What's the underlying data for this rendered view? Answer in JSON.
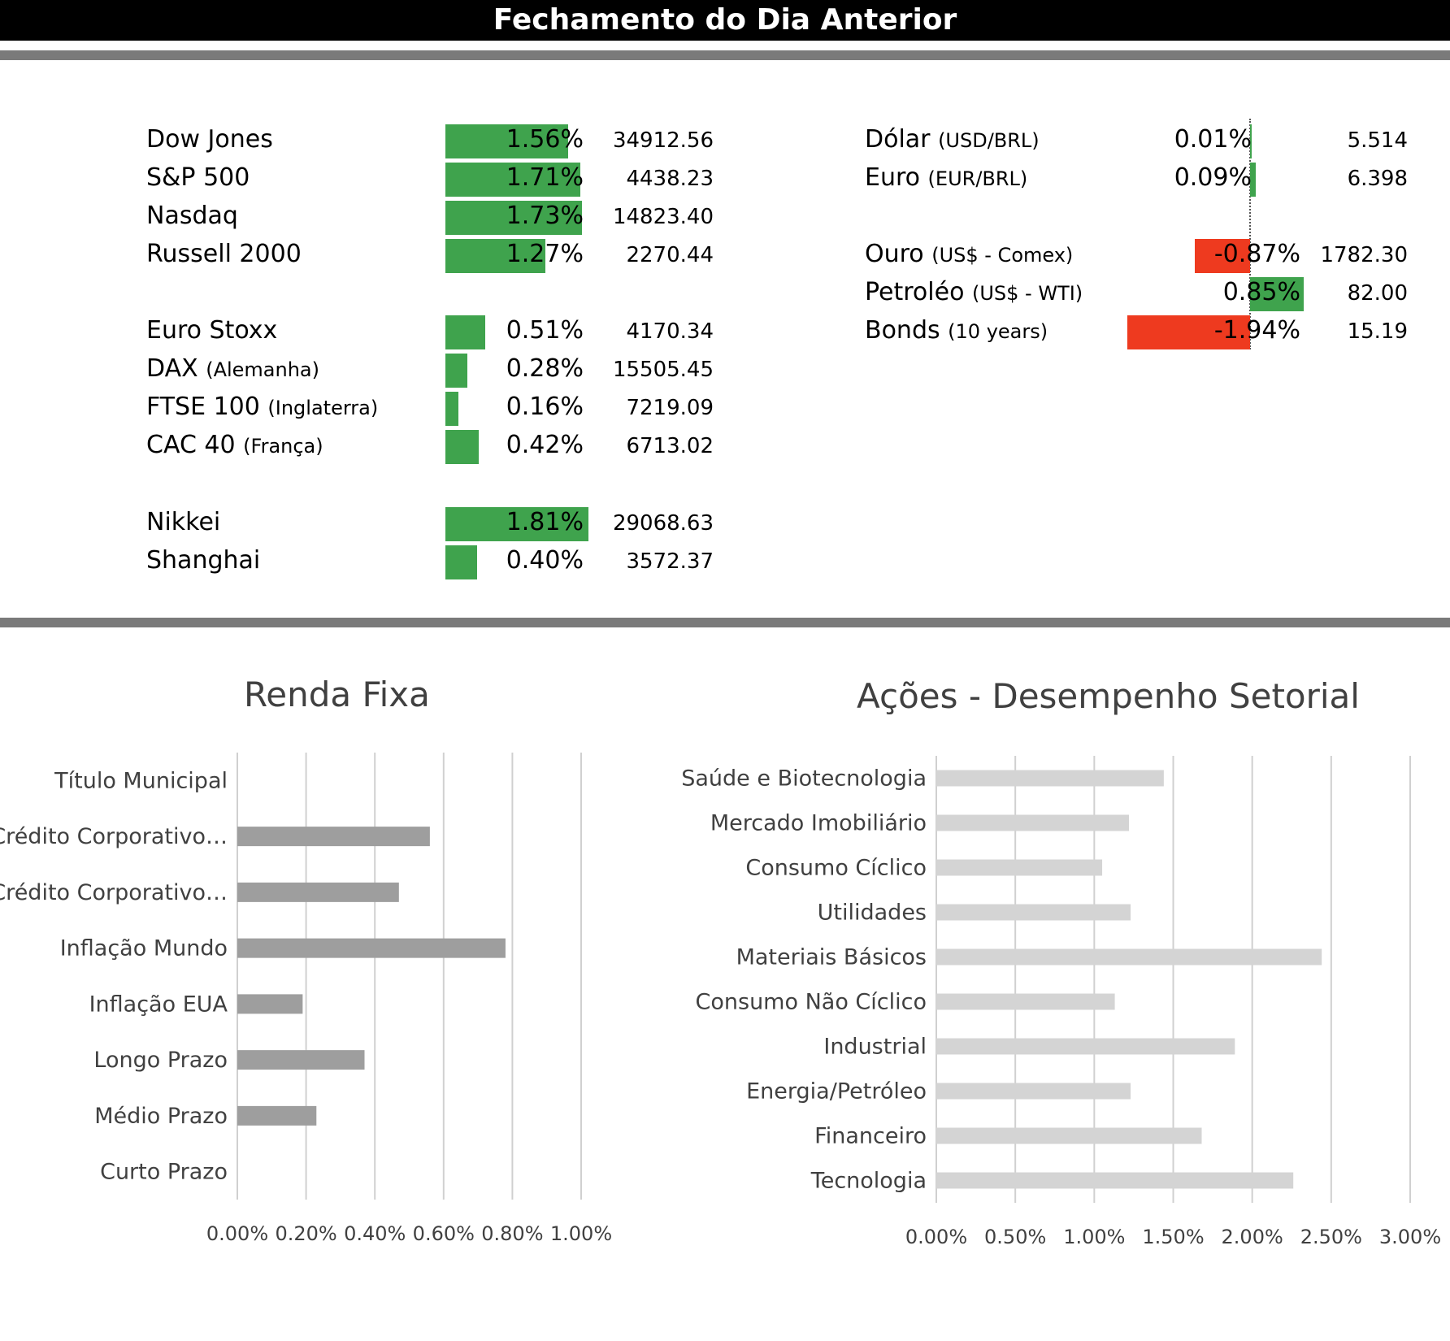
{
  "header": {
    "title": "Fechamento do Dia Anterior"
  },
  "colors": {
    "positive": "#3fa34d",
    "negative": "#ee3a1f",
    "renda_bar": "#9e9e9e",
    "setor_bar": "#d4d4d4",
    "grid": "#d0d0d0",
    "rule": "#7a7a7a"
  },
  "indices": [
    {
      "name": "Dow Jones",
      "sub": "",
      "pct": "1.56%",
      "value": "34912.56",
      "change": 1.56
    },
    {
      "name": "S&P 500",
      "sub": "",
      "pct": "1.71%",
      "value": "4438.23",
      "change": 1.71
    },
    {
      "name": "Nasdaq",
      "sub": "",
      "pct": "1.73%",
      "value": "14823.40",
      "change": 1.73
    },
    {
      "name": "Russell 2000",
      "sub": "",
      "pct": "1.27%",
      "value": "2270.44",
      "change": 1.27
    },
    {
      "name": "Euro Stoxx",
      "sub": "",
      "pct": "0.51%",
      "value": "4170.34",
      "change": 0.51
    },
    {
      "name": "DAX",
      "sub": "(Alemanha)",
      "pct": "0.28%",
      "value": "15505.45",
      "change": 0.28
    },
    {
      "name": "FTSE 100",
      "sub": "(Inglaterra)",
      "pct": "0.16%",
      "value": "7219.09",
      "change": 0.16
    },
    {
      "name": "CAC 40",
      "sub": "(França)",
      "pct": "0.42%",
      "value": "6713.02",
      "change": 0.42
    },
    {
      "name": "Nikkei",
      "sub": "",
      "pct": "1.81%",
      "value": "29068.63",
      "change": 1.81
    },
    {
      "name": "Shanghai",
      "sub": "",
      "pct": "0.40%",
      "value": "3572.37",
      "change": 0.4
    }
  ],
  "assets": [
    {
      "name": "Dólar",
      "sub": "(USD/BRL)",
      "pct": "0.01%",
      "value": "5.514",
      "change": 0.01
    },
    {
      "name": "Euro",
      "sub": "(EUR/BRL)",
      "pct": "0.09%",
      "value": "6.398",
      "change": 0.09
    },
    {
      "name": "Ouro",
      "sub": "(US$ - Comex)",
      "pct": "-0.87%",
      "value": "1782.30",
      "change": -0.87
    },
    {
      "name": "Petroléo",
      "sub": "(US$ - WTI)",
      "pct": "0.85%",
      "value": "82.00",
      "change": 0.85
    },
    {
      "name": "Bonds",
      "sub": "(10 years)",
      "pct": "-1.94%",
      "value": "15.19",
      "change": -1.94
    }
  ],
  "chart_data": [
    {
      "type": "bar",
      "orientation": "horizontal",
      "title": "Renda Fixa",
      "categories": [
        "Título Municipal",
        "Crédito Corporativo…",
        "Crédito Corporativo…",
        "Inflação Mundo",
        "Inflação EUA",
        "Longo Prazo",
        "Médio Prazo",
        "Curto Prazo"
      ],
      "values": [
        0.0,
        0.56,
        0.47,
        0.78,
        0.19,
        0.37,
        0.23,
        0.0
      ],
      "unit": "%",
      "xlim": [
        0,
        1.0
      ],
      "ticks": [
        "0.00%",
        "0.20%",
        "0.40%",
        "0.60%",
        "0.80%",
        "1.00%"
      ],
      "grid": true,
      "legend": "none"
    },
    {
      "type": "bar",
      "orientation": "horizontal",
      "title": "Ações - Desempenho Setorial",
      "categories": [
        "Saúde e Biotecnologia",
        "Mercado Imobiliário",
        "Consumo Cíclico",
        "Utilidades",
        "Materiais Básicos",
        "Consumo Não Cíclico",
        "Industrial",
        "Energia/Petróleo",
        "Financeiro",
        "Tecnologia"
      ],
      "values": [
        1.44,
        1.22,
        1.05,
        1.23,
        2.44,
        1.13,
        1.89,
        1.23,
        1.68,
        2.26
      ],
      "unit": "%",
      "xlim": [
        0,
        3.0
      ],
      "ticks": [
        "0.00%",
        "0.50%",
        "1.00%",
        "1.50%",
        "2.00%",
        "2.50%",
        "3.00%"
      ],
      "grid": true,
      "legend": "none"
    }
  ]
}
